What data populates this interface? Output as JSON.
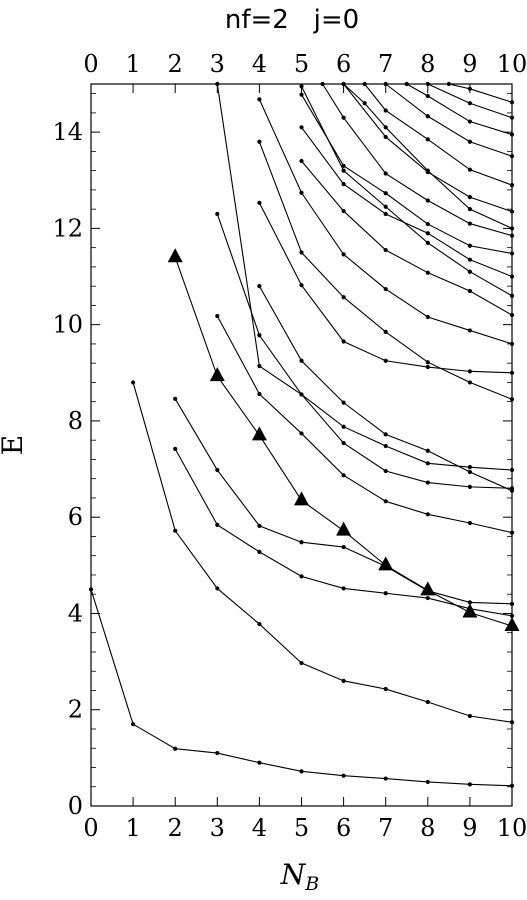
{
  "chart_data": {
    "type": "line",
    "title": "nf=2   j=0",
    "xlabel": "N_B",
    "xlabel_main": "N",
    "xlabel_sub": "B",
    "ylabel": "E",
    "xlim": [
      0,
      10
    ],
    "ylim": [
      0,
      15
    ],
    "xticks": [
      0,
      1,
      2,
      3,
      4,
      5,
      6,
      7,
      8,
      9,
      10
    ],
    "yticks": [
      0,
      2,
      4,
      6,
      8,
      10,
      12,
      14
    ],
    "yticks_minor_step": 0.4,
    "grid": false,
    "colors": {
      "line": "#000000",
      "marker": "#000000",
      "frame": "#000000"
    },
    "series": [
      {
        "marker": "dot",
        "points": [
          [
            0,
            4.5
          ],
          [
            1,
            1.7
          ],
          [
            2,
            1.19
          ],
          [
            3,
            1.1
          ],
          [
            4,
            0.9
          ],
          [
            5,
            0.72
          ],
          [
            6,
            0.63
          ],
          [
            7,
            0.57
          ],
          [
            8,
            0.5
          ],
          [
            9,
            0.45
          ],
          [
            10,
            0.42
          ]
        ]
      },
      {
        "marker": "dot",
        "points": [
          [
            1,
            8.8
          ],
          [
            2,
            5.72
          ],
          [
            3,
            4.52
          ],
          [
            4,
            3.78
          ],
          [
            5,
            2.97
          ],
          [
            6,
            2.6
          ],
          [
            7,
            2.43
          ],
          [
            8,
            2.16
          ],
          [
            9,
            1.87
          ],
          [
            10,
            1.74
          ]
        ]
      },
      {
        "marker": "dot",
        "points": [
          [
            2,
            7.42
          ],
          [
            3,
            5.84
          ],
          [
            4,
            5.28
          ],
          [
            5,
            4.77
          ],
          [
            6,
            4.52
          ],
          [
            7,
            4.42
          ],
          [
            8,
            4.32
          ],
          [
            9,
            4.1
          ],
          [
            10,
            3.95
          ]
        ]
      },
      {
        "marker": "dot",
        "points": [
          [
            2,
            8.46
          ],
          [
            3,
            6.98
          ],
          [
            4,
            5.82
          ],
          [
            5,
            5.48
          ],
          [
            6,
            5.38
          ],
          [
            7,
            4.98
          ],
          [
            8,
            4.47
          ],
          [
            9,
            4.23
          ],
          [
            10,
            4.2
          ]
        ]
      },
      {
        "marker": "triangle",
        "points": [
          [
            2,
            11.4
          ],
          [
            3,
            8.93
          ],
          [
            4,
            7.7
          ],
          [
            5,
            6.35
          ],
          [
            6,
            5.72
          ],
          [
            7,
            5.0
          ],
          [
            8,
            4.48
          ],
          [
            9,
            4.02
          ],
          [
            10,
            3.74
          ]
        ]
      },
      {
        "marker": "dot",
        "points": [
          [
            3,
            10.18
          ],
          [
            4,
            8.56
          ],
          [
            5,
            7.74
          ],
          [
            6,
            6.87
          ],
          [
            7,
            6.33
          ],
          [
            8,
            6.06
          ],
          [
            9,
            5.88
          ],
          [
            10,
            5.68
          ]
        ]
      },
      {
        "marker": "dot",
        "points": [
          [
            3,
            12.3
          ],
          [
            4,
            9.78
          ],
          [
            5,
            8.55
          ],
          [
            6,
            7.54
          ],
          [
            7,
            6.96
          ],
          [
            8,
            6.72
          ],
          [
            9,
            6.63
          ],
          [
            10,
            6.6
          ]
        ]
      },
      {
        "marker": "dot",
        "points": [
          [
            4,
            10.8
          ],
          [
            5,
            9.25
          ],
          [
            6,
            8.38
          ],
          [
            7,
            7.72
          ],
          [
            8,
            7.38
          ],
          [
            9,
            6.94
          ],
          [
            10,
            6.55
          ]
        ]
      },
      {
        "marker": "dot",
        "points": [
          [
            4,
            12.53
          ],
          [
            5,
            10.82
          ],
          [
            6,
            9.65
          ],
          [
            7,
            9.25
          ],
          [
            8,
            9.12
          ],
          [
            9,
            9.03
          ],
          [
            10,
            9.0
          ]
        ]
      },
      {
        "marker": "dot",
        "points": [
          [
            3,
            15
          ],
          [
            4,
            9.14
          ],
          [
            5,
            8.55
          ],
          [
            6,
            7.88
          ],
          [
            7,
            7.48
          ],
          [
            8,
            7.12
          ],
          [
            9,
            7.04
          ],
          [
            10,
            6.98
          ]
        ]
      },
      {
        "marker": "dot",
        "points": [
          [
            4,
            13.8
          ],
          [
            5,
            11.5
          ],
          [
            6,
            10.57
          ],
          [
            7,
            9.85
          ],
          [
            8,
            9.22
          ],
          [
            9,
            8.8
          ],
          [
            10,
            8.45
          ]
        ]
      },
      {
        "marker": "dot",
        "points": [
          [
            4,
            14.68
          ],
          [
            5,
            12.74
          ],
          [
            6,
            11.46
          ],
          [
            7,
            10.74
          ],
          [
            8,
            10.16
          ],
          [
            9,
            9.88
          ],
          [
            10,
            9.6
          ]
        ]
      },
      {
        "marker": "dot",
        "points": [
          [
            5,
            13.4
          ],
          [
            6,
            12.36
          ],
          [
            7,
            11.55
          ],
          [
            8,
            11.08
          ],
          [
            9,
            10.7
          ],
          [
            10,
            10.2
          ]
        ]
      },
      {
        "marker": "dot",
        "points": [
          [
            5,
            14.1
          ],
          [
            6,
            12.92
          ],
          [
            7,
            12.3
          ],
          [
            8,
            11.9
          ],
          [
            9,
            11.35
          ],
          [
            10,
            11.0
          ]
        ]
      },
      {
        "marker": "dot",
        "points": [
          [
            5,
            14.78
          ],
          [
            6,
            13.3
          ],
          [
            7,
            12.73
          ],
          [
            8,
            12.09
          ],
          [
            9,
            11.64
          ],
          [
            10,
            11.48
          ]
        ]
      },
      {
        "marker": "dot",
        "points": [
          [
            5.5,
            15
          ],
          [
            6,
            14.3
          ],
          [
            7,
            13.14
          ],
          [
            8,
            12.58
          ],
          [
            9,
            12.1
          ],
          [
            10,
            11.85
          ]
        ]
      },
      {
        "marker": "dot",
        "points": [
          [
            6,
            15
          ],
          [
            7,
            13.9
          ],
          [
            8,
            13.17
          ],
          [
            9,
            12.65
          ],
          [
            10,
            12.35
          ]
        ]
      },
      {
        "marker": "dot",
        "points": [
          [
            6.5,
            15
          ],
          [
            7,
            14.45
          ],
          [
            8,
            13.85
          ],
          [
            9,
            13.22
          ],
          [
            10,
            12.9
          ]
        ]
      },
      {
        "marker": "dot",
        "points": [
          [
            7,
            15
          ],
          [
            8,
            14.33
          ],
          [
            9,
            13.8
          ],
          [
            10,
            13.5
          ]
        ]
      },
      {
        "marker": "dot",
        "points": [
          [
            7.5,
            15
          ],
          [
            8,
            14.75
          ],
          [
            9,
            14.22
          ],
          [
            10,
            13.95
          ]
        ]
      },
      {
        "marker": "dot",
        "points": [
          [
            8,
            15
          ],
          [
            9,
            14.6
          ],
          [
            10,
            14.3
          ]
        ]
      },
      {
        "marker": "dot",
        "points": [
          [
            8.5,
            15
          ],
          [
            9,
            14.9
          ],
          [
            10,
            14.62
          ]
        ]
      },
      {
        "marker": "dot",
        "points": [
          [
            6,
            15
          ],
          [
            6.5,
            14.6
          ],
          [
            7,
            14.1
          ],
          [
            8,
            13.2
          ],
          [
            9,
            12.4
          ],
          [
            10,
            12.0
          ]
        ]
      },
      {
        "marker": "dot",
        "points": [
          [
            5,
            14.95
          ],
          [
            6,
            13.2
          ],
          [
            7,
            12.45
          ],
          [
            8,
            11.7
          ],
          [
            9,
            11.1
          ],
          [
            10,
            10.6
          ]
        ]
      }
    ]
  }
}
